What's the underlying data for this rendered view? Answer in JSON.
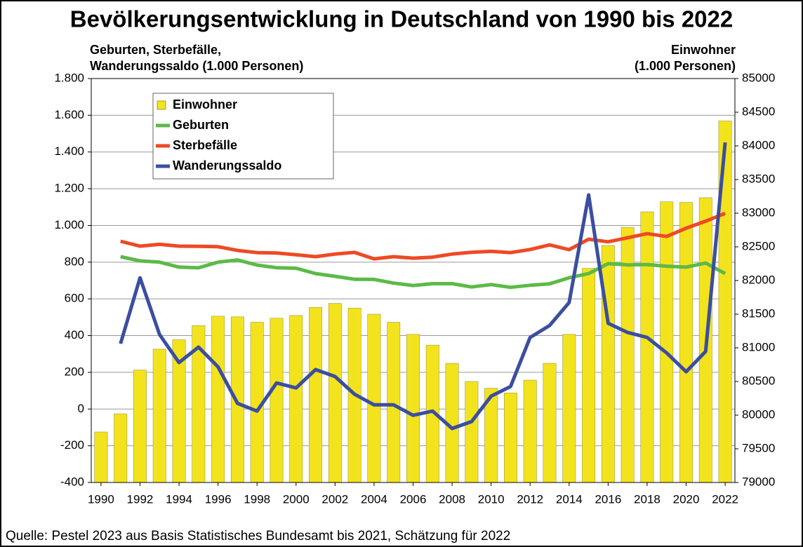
{
  "chart_data": {
    "type": "bar_line",
    "title": "Bevölkerungsentwicklung in Deutschland von 1990 bis 2022",
    "y_label": [
      "Geburten, Sterbefälle,",
      "Wanderungssaldo (1.000 Personen)"
    ],
    "y2_label": [
      "Einwohner",
      "(1.000 Personen)"
    ],
    "source": "Quelle: Pestel 2023 aus Basis Statistisches Bundesamt bis 2021, Schätzung für 2022",
    "x": [
      1990,
      1991,
      1992,
      1993,
      1994,
      1995,
      1996,
      1997,
      1998,
      1999,
      2000,
      2001,
      2002,
      2003,
      2004,
      2005,
      2006,
      2007,
      2008,
      2009,
      2010,
      2011,
      2012,
      2013,
      2014,
      2015,
      2016,
      2017,
      2018,
      2019,
      2020,
      2021,
      2022
    ],
    "xlim": [
      1989.5,
      2022.5
    ],
    "xticks": [
      1990,
      1992,
      1994,
      1996,
      1998,
      2000,
      2002,
      2004,
      2006,
      2008,
      2010,
      2012,
      2014,
      2016,
      2018,
      2020,
      2022
    ],
    "ylim": [
      -400,
      1800
    ],
    "yticks": [
      -400,
      -200,
      0,
      200,
      400,
      600,
      800,
      {
        "value": 1000,
        "label": "1.000"
      },
      {
        "value": 1200,
        "label": "1.200"
      },
      {
        "value": 1400,
        "label": "1.400"
      },
      {
        "value": 1600,
        "label": "1.600"
      },
      {
        "value": 1800,
        "label": "1.800"
      }
    ],
    "y2lim": [
      79000,
      85000
    ],
    "y2ticks": [
      79000,
      79500,
      80000,
      80500,
      81000,
      81500,
      82000,
      82500,
      83000,
      83500,
      84000,
      84500,
      85000
    ],
    "grid": true,
    "legend": "upper left",
    "series": [
      {
        "name": "Einwohner",
        "kind": "bar",
        "axis": "y2",
        "color": "#f3e31c",
        "values": [
          79750,
          80020,
          80670,
          80980,
          81120,
          81330,
          81470,
          81460,
          81380,
          81440,
          81480,
          81600,
          81660,
          81590,
          81500,
          81380,
          81200,
          81040,
          80770,
          80500,
          80400,
          80330,
          80520,
          80770,
          81200,
          82180,
          82520,
          82790,
          83020,
          83170,
          83160,
          83230,
          84370
        ]
      },
      {
        "name": "Geburten",
        "kind": "line",
        "color": "#5cba47",
        "values": [
          null,
          830,
          807,
          800,
          773,
          769,
          800,
          812,
          784,
          770,
          767,
          738,
          723,
          707,
          706,
          686,
          673,
          683,
          683,
          665,
          678,
          663,
          674,
          682,
          715,
          738,
          792,
          785,
          787,
          778,
          773,
          795,
          738
        ]
      },
      {
        "name": "Sterbefälle",
        "kind": "line",
        "color": "#ee4a24",
        "values": [
          null,
          914,
          887,
          897,
          887,
          886,
          884,
          864,
          852,
          850,
          840,
          830,
          844,
          853,
          818,
          830,
          822,
          827,
          844,
          854,
          859,
          852,
          869,
          894,
          868,
          925,
          911,
          933,
          955,
          940,
          985,
          1023,
          1066
        ]
      },
      {
        "name": "Wanderungssaldo",
        "kind": "line",
        "color": "#3b4ea0",
        "values": [
          null,
          356,
          715,
          406,
          253,
          337,
          230,
          31,
          -11,
          142,
          115,
          215,
          177,
          81,
          23,
          23,
          -34,
          -11,
          -106,
          -68,
          70,
          123,
          390,
          455,
          580,
          1166,
          467,
          417,
          390,
          306,
          203,
          314,
          1452
        ]
      }
    ]
  }
}
